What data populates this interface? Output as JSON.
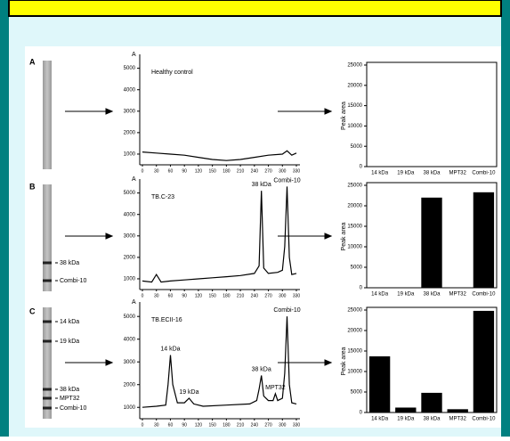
{
  "panel_letters": [
    "A",
    "B",
    "C"
  ],
  "gels": [
    {
      "labels": []
    },
    {
      "labels": [
        "38 kDa",
        "Combi-10"
      ]
    },
    {
      "labels": [
        "14 kDa",
        "19 kDa",
        "38 kDa",
        "MPT32",
        "Combi-10"
      ]
    }
  ],
  "chart_data": [
    {
      "type": "line",
      "title": "Healthy control",
      "y_label": "A",
      "color": "#000000",
      "x": [
        0,
        30,
        60,
        90,
        120,
        150,
        180,
        210,
        240,
        270,
        300,
        310,
        320,
        330
      ],
      "values": [
        1100,
        1050,
        1000,
        950,
        850,
        750,
        700,
        750,
        850,
        950,
        1000,
        1150,
        950,
        1050
      ],
      "xlim": [
        0,
        330
      ],
      "xticks": [
        0,
        30,
        60,
        90,
        120,
        150,
        180,
        210,
        240,
        270,
        300,
        330
      ],
      "ylim": [
        500,
        5400
      ],
      "yticks": [
        1000,
        2000,
        3000,
        4000,
        5000
      ],
      "annotations": []
    },
    {
      "type": "bar",
      "y_label": "Peak area",
      "color": "#000000",
      "categories": [
        "14 kDa",
        "19 kDa",
        "38 kDa",
        "MPT32",
        "Combi-10"
      ],
      "values": [
        0,
        0,
        0,
        0,
        0
      ],
      "ylim": [
        0,
        25000
      ],
      "yticks": [
        0,
        5000,
        10000,
        15000,
        20000,
        25000
      ]
    },
    {
      "type": "line",
      "title": "TB.C-23",
      "y_label": "A",
      "color": "#000000",
      "x": [
        0,
        20,
        30,
        40,
        60,
        90,
        120,
        150,
        180,
        210,
        240,
        250,
        255,
        260,
        270,
        290,
        300,
        305,
        310,
        315,
        320,
        330
      ],
      "values": [
        900,
        850,
        1200,
        850,
        900,
        950,
        1000,
        1050,
        1100,
        1150,
        1250,
        1600,
        5100,
        1500,
        1250,
        1300,
        1400,
        2500,
        5300,
        2000,
        1200,
        1250
      ],
      "xlim": [
        0,
        330
      ],
      "xticks": [
        0,
        30,
        60,
        90,
        120,
        150,
        180,
        210,
        240,
        270,
        300,
        330
      ],
      "ylim": [
        500,
        5400
      ],
      "yticks": [
        1000,
        2000,
        3000,
        4000,
        5000
      ],
      "annotations": [
        {
          "text": "38 kDa",
          "x": 255
        },
        {
          "text": "Combi-10",
          "x": 310
        }
      ]
    },
    {
      "type": "bar",
      "y_label": "Peak area",
      "color": "#000000",
      "categories": [
        "14 kDa",
        "19 kDa",
        "38 kDa",
        "MPT32",
        "Combi-10"
      ],
      "values": [
        0,
        0,
        22000,
        0,
        23300
      ],
      "ylim": [
        0,
        25000
      ],
      "yticks": [
        0,
        5000,
        10000,
        15000,
        20000,
        25000
      ]
    },
    {
      "type": "line",
      "title": "TB.ECII-16",
      "y_label": "A",
      "color": "#000000",
      "x": [
        0,
        30,
        50,
        55,
        60,
        65,
        75,
        90,
        100,
        110,
        130,
        180,
        230,
        245,
        250,
        255,
        260,
        270,
        280,
        285,
        290,
        300,
        305,
        310,
        315,
        320,
        330
      ],
      "values": [
        1000,
        1050,
        1100,
        2000,
        3300,
        2000,
        1200,
        1200,
        1400,
        1150,
        1050,
        1100,
        1150,
        1300,
        1800,
        2400,
        1500,
        1300,
        1300,
        1600,
        1300,
        1400,
        2500,
        5000,
        2000,
        1200,
        1150
      ],
      "xlim": [
        0,
        330
      ],
      "xticks": [
        0,
        30,
        60,
        90,
        120,
        150,
        180,
        210,
        240,
        270,
        300,
        330
      ],
      "ylim": [
        500,
        5400
      ],
      "yticks": [
        1000,
        2000,
        3000,
        4000,
        5000
      ],
      "annotations": [
        {
          "text": "14 kDa",
          "x": 60
        },
        {
          "text": "19 kDa",
          "x": 100
        },
        {
          "text": "38 kDa",
          "x": 255
        },
        {
          "text": "MPT32",
          "x": 285
        },
        {
          "text": "Combi-10",
          "x": 310
        }
      ]
    },
    {
      "type": "bar",
      "y_label": "Peak area",
      "color": "#000000",
      "categories": [
        "14 kDa",
        "19 kDa",
        "38 kDa",
        "MPT32",
        "Combi-10"
      ],
      "values": [
        13700,
        1200,
        4800,
        800,
        24800
      ],
      "ylim": [
        0,
        25000
      ],
      "yticks": [
        0,
        5000,
        10000,
        15000,
        20000,
        25000
      ]
    }
  ]
}
